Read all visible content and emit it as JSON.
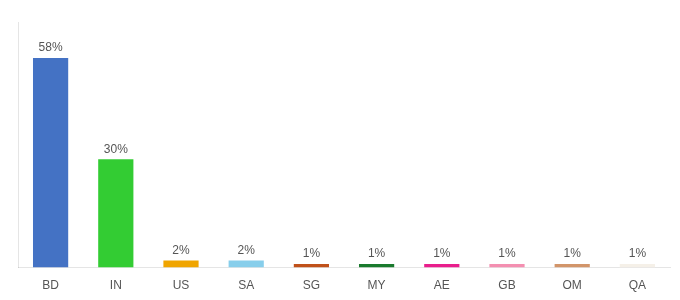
{
  "chart_data": {
    "type": "bar",
    "categories": [
      "BD",
      "IN",
      "US",
      "SA",
      "SG",
      "MY",
      "AE",
      "GB",
      "OM",
      "QA"
    ],
    "values": [
      58,
      30,
      2,
      2,
      1,
      1,
      1,
      1,
      1,
      1
    ],
    "value_labels": [
      "58%",
      "30%",
      "2%",
      "2%",
      "1%",
      "1%",
      "1%",
      "1%",
      "1%",
      "1%"
    ],
    "colors": [
      "#4472c4",
      "#33cc33",
      "#f0a500",
      "#87ceeb",
      "#c0511a",
      "#1a7a2e",
      "#e91e8c",
      "#f48fb1",
      "#d2956a",
      "#f5f0e8"
    ],
    "ylim": [
      0,
      68
    ],
    "grid": false,
    "data_labels": true,
    "tick_labels": "x"
  }
}
